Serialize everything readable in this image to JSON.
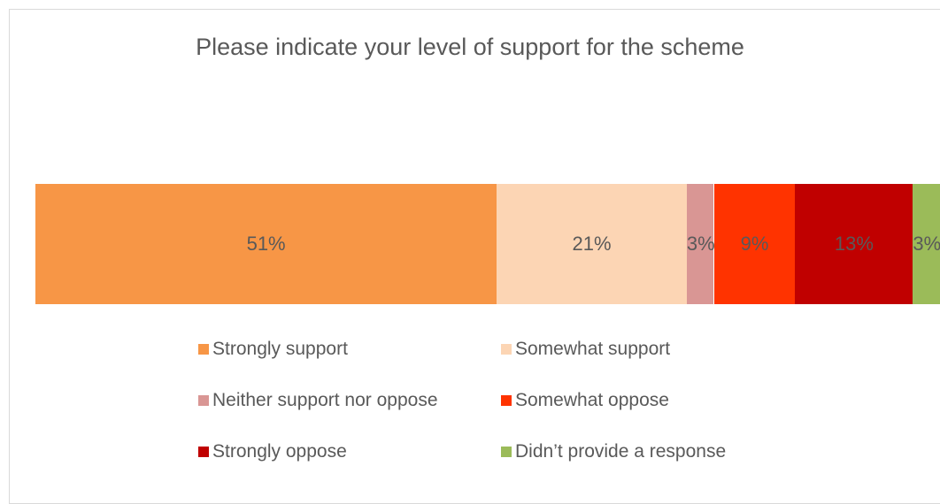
{
  "chart_data": {
    "type": "bar",
    "orientation": "horizontal-stacked-100",
    "title": "Please indicate your level of support for the scheme",
    "series": [
      {
        "name": "Strongly support",
        "value": 51,
        "label": "51%",
        "color": "#f79646"
      },
      {
        "name": "Somewhat support",
        "value": 21,
        "label": "21%",
        "color": "#fcd5b4"
      },
      {
        "name": "Neither support nor oppose",
        "value": 3,
        "label": "3%",
        "color": "#d99694"
      },
      {
        "name": "Somewhat oppose",
        "value": 9,
        "label": "9%",
        "color": "#ff3300"
      },
      {
        "name": "Strongly oppose",
        "value": 13,
        "label": "13%",
        "color": "#c00000"
      },
      {
        "name": "Didn’t provide a response",
        "value": 3,
        "label": "3%",
        "color": "#9bbb59"
      }
    ],
    "legend_position": "bottom",
    "grid": false
  }
}
